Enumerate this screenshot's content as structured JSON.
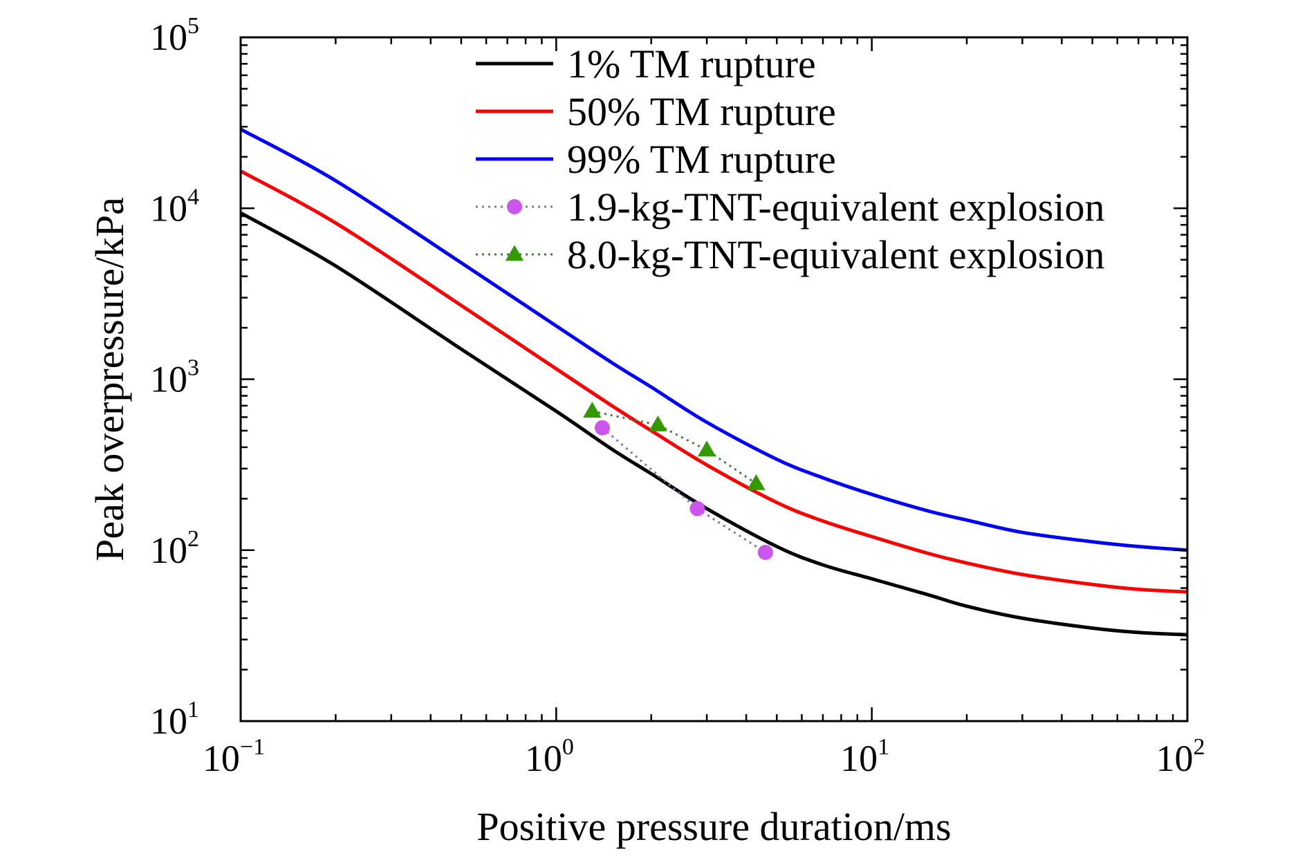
{
  "chart_data": {
    "type": "line",
    "xlabel": "Positive pressure duration/ms",
    "ylabel": "Peak overpressure/kPa",
    "xscale": "log",
    "yscale": "log",
    "xlim": [
      0.1,
      100
    ],
    "ylim": [
      10,
      100000
    ],
    "grid": false,
    "legend_position": "top-right",
    "x_ticks": [
      {
        "value": 0.1,
        "base": "10",
        "exp": "−1"
      },
      {
        "value": 1,
        "base": "10",
        "exp": "0"
      },
      {
        "value": 10,
        "base": "10",
        "exp": "1"
      },
      {
        "value": 100,
        "base": "10",
        "exp": "2"
      }
    ],
    "y_ticks": [
      {
        "value": 10,
        "base": "10",
        "exp": "1"
      },
      {
        "value": 100,
        "base": "10",
        "exp": "2"
      },
      {
        "value": 1000,
        "base": "10",
        "exp": "3"
      },
      {
        "value": 10000,
        "base": "10",
        "exp": "4"
      },
      {
        "value": 100000,
        "base": "10",
        "exp": "5"
      }
    ],
    "series": [
      {
        "name": "1% TM rupture",
        "color": "#000000",
        "style": "solid",
        "x": [
          0.1,
          0.2,
          0.5,
          1,
          1.5,
          2,
          3,
          5,
          7,
          10,
          15,
          20,
          30,
          50,
          70,
          100
        ],
        "y": [
          9400,
          4600,
          1500,
          650,
          390,
          280,
          175,
          105,
          82,
          68,
          55,
          47,
          40,
          35,
          33,
          32
        ]
      },
      {
        "name": "50% TM rupture",
        "color": "#ff0000",
        "style": "solid",
        "x": [
          0.1,
          0.2,
          0.5,
          1,
          1.5,
          2,
          3,
          5,
          7,
          10,
          15,
          20,
          30,
          50,
          70,
          100
        ],
        "y": [
          16500,
          8200,
          2700,
          1150,
          700,
          500,
          315,
          190,
          148,
          120,
          96,
          84,
          72,
          63,
          59,
          57
        ]
      },
      {
        "name": "99% TM rupture",
        "color": "#0000ff",
        "style": "solid",
        "x": [
          0.1,
          0.2,
          0.5,
          1,
          1.5,
          2,
          3,
          5,
          7,
          10,
          15,
          20,
          30,
          50,
          70,
          100
        ],
        "y": [
          29000,
          14500,
          4800,
          2050,
          1250,
          900,
          560,
          340,
          265,
          212,
          170,
          150,
          127,
          112,
          105,
          100
        ]
      },
      {
        "name": "1.9-kg-TNT-equivalent explosion",
        "color": "#cc55ee",
        "line_color": "#7777aa",
        "style": "dotted",
        "marker": "circle",
        "x": [
          1.4,
          2.8,
          4.6
        ],
        "y": [
          520,
          175,
          97
        ]
      },
      {
        "name": "8.0-kg-TNT-equivalent explosion",
        "color": "#339900",
        "line_color": "#447744",
        "style": "dotted",
        "marker": "triangle",
        "x": [
          1.3,
          2.1,
          3.0,
          4.3
        ],
        "y": [
          650,
          540,
          385,
          245
        ]
      }
    ]
  }
}
